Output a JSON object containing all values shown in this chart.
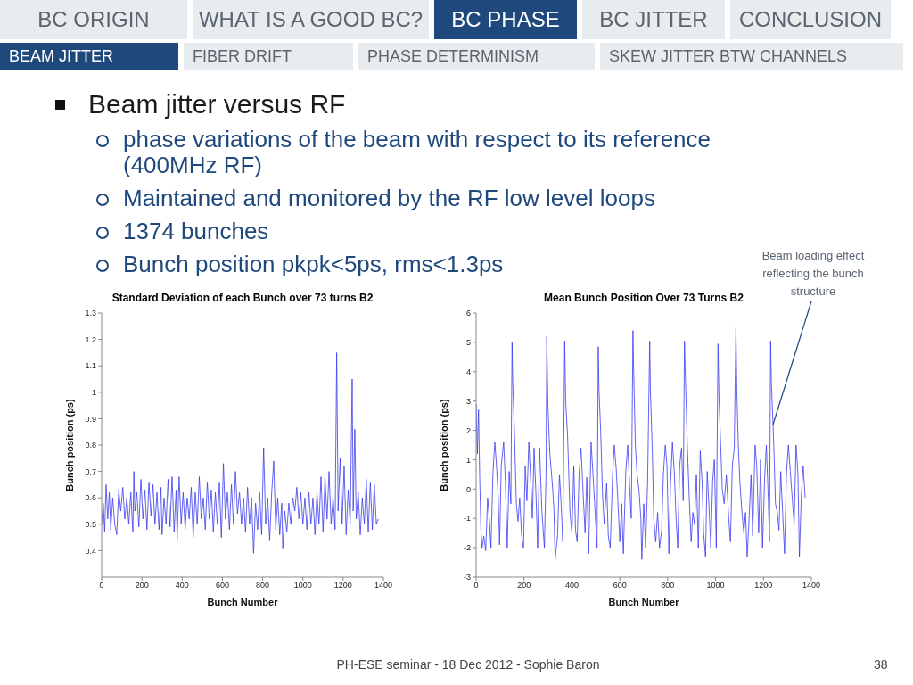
{
  "chart_data": [
    {
      "type": "other",
      "title": "Beam jitter versus RF",
      "annotations": [
        "BC ORIGIN",
        "WHAT IS A GOOD BC?",
        "BC PHASE",
        "BC JITTER",
        "CONCLUSION",
        "BEAM JITTER",
        "FIBER DRIFT",
        "PHASE DETERMINISM",
        "SKEW JITTER BTW CHANNELS",
        "phase variations of the beam with respect to its reference (400MHz RF)",
        "Maintained and monitored by the RF low level loops",
        "1374 bunches",
        "Bunch position pkpk<5ps, rms<1.3ps",
        "PH-ESE seminar - 18 Dec 2012 - Sophie Baron",
        "38"
      ]
    },
    {
      "type": "line",
      "title": "Standard Deviation of each Bunch over 73 turns B2",
      "xlabel": "Bunch Number",
      "ylabel": "Bunch position (ps)",
      "xlim": [
        0,
        1400
      ],
      "xticks": [
        0,
        200,
        400,
        600,
        800,
        1000,
        1200,
        1400
      ],
      "ylim": [
        0.3,
        1.3
      ],
      "yticks": [
        0.4,
        0.5,
        0.6,
        0.7,
        0.8,
        0.9,
        1,
        1.1,
        1.2,
        1.3
      ],
      "grid": false,
      "marker": "none",
      "line_style": "solid",
      "series": [
        {
          "color": "#3b3bf0",
          "x": [
            0,
            8,
            15,
            22,
            30,
            38,
            45,
            55,
            65,
            75,
            85,
            95,
            105,
            115,
            125,
            135,
            145,
            155,
            160,
            165,
            175,
            185,
            195,
            205,
            215,
            225,
            235,
            245,
            255,
            265,
            275,
            285,
            295,
            300,
            310,
            320,
            330,
            340,
            350,
            360,
            370,
            375,
            385,
            395,
            405,
            415,
            425,
            435,
            445,
            455,
            465,
            475,
            485,
            495,
            505,
            515,
            525,
            535,
            545,
            555,
            565,
            575,
            585,
            595,
            605,
            615,
            625,
            635,
            645,
            655,
            665,
            675,
            685,
            695,
            705,
            715,
            725,
            735,
            745,
            755,
            765,
            775,
            785,
            795,
            805,
            815,
            825,
            835,
            845,
            855,
            865,
            875,
            885,
            895,
            900,
            910,
            920,
            930,
            940,
            950,
            960,
            970,
            980,
            990,
            1000,
            1010,
            1020,
            1030,
            1040,
            1050,
            1060,
            1070,
            1080,
            1090,
            1100,
            1110,
            1120,
            1130,
            1140,
            1150,
            1160,
            1168,
            1175,
            1185,
            1195,
            1205,
            1215,
            1225,
            1235,
            1245,
            1250,
            1258,
            1265,
            1275,
            1285,
            1295,
            1305,
            1315,
            1325,
            1335,
            1345,
            1355,
            1365,
            1374
          ],
          "values": [
            0.5,
            0.58,
            0.47,
            0.65,
            0.52,
            0.62,
            0.48,
            0.6,
            0.5,
            0.46,
            0.63,
            0.55,
            0.64,
            0.52,
            0.6,
            0.5,
            0.62,
            0.47,
            0.7,
            0.55,
            0.62,
            0.49,
            0.67,
            0.52,
            0.63,
            0.48,
            0.66,
            0.53,
            0.65,
            0.5,
            0.62,
            0.48,
            0.64,
            0.46,
            0.6,
            0.5,
            0.67,
            0.49,
            0.68,
            0.47,
            0.63,
            0.44,
            0.68,
            0.5,
            0.62,
            0.48,
            0.6,
            0.52,
            0.64,
            0.45,
            0.62,
            0.5,
            0.68,
            0.52,
            0.6,
            0.48,
            0.66,
            0.52,
            0.63,
            0.47,
            0.62,
            0.5,
            0.66,
            0.45,
            0.73,
            0.52,
            0.62,
            0.48,
            0.65,
            0.5,
            0.7,
            0.54,
            0.62,
            0.5,
            0.6,
            0.47,
            0.64,
            0.5,
            0.6,
            0.39,
            0.58,
            0.48,
            0.62,
            0.46,
            0.79,
            0.5,
            0.6,
            0.44,
            0.62,
            0.74,
            0.48,
            0.6,
            0.46,
            0.58,
            0.41,
            0.55,
            0.47,
            0.58,
            0.5,
            0.6,
            0.55,
            0.64,
            0.52,
            0.62,
            0.5,
            0.6,
            0.48,
            0.62,
            0.5,
            0.6,
            0.46,
            0.62,
            0.5,
            0.68,
            0.47,
            0.68,
            0.52,
            0.7,
            0.5,
            0.6,
            0.48,
            1.15,
            0.55,
            0.75,
            0.5,
            0.72,
            0.46,
            0.63,
            0.5,
            1.05,
            0.55,
            0.86,
            0.52,
            0.62,
            0.46,
            0.6,
            0.5,
            0.67,
            0.47,
            0.66,
            0.48,
            0.65,
            0.5,
            0.52
          ]
        }
      ]
    },
    {
      "type": "line",
      "title": "Mean Bunch Position Over 73 Turns B2",
      "xlabel": "Bunch Number",
      "ylabel": "Bunch position (ps)",
      "xlim": [
        0,
        1400
      ],
      "xticks": [
        0,
        200,
        400,
        600,
        800,
        1000,
        1200,
        1400
      ],
      "ylim": [
        -3,
        6
      ],
      "yticks": [
        -3,
        -2,
        -1,
        0,
        1,
        2,
        3,
        4,
        5,
        6
      ],
      "grid": false,
      "marker": "none",
      "line_style": "solid",
      "annotations": [
        {
          "text": "Beam loading effect reflecting the bunch structure",
          "x": 1240,
          "y": 2.2
        }
      ],
      "series": [
        {
          "color": "#3b3bf0",
          "x": [
            0,
            5,
            10,
            15,
            20,
            25,
            32,
            40,
            48,
            55,
            62,
            70,
            78,
            85,
            92,
            98,
            105,
            115,
            122,
            130,
            138,
            145,
            150,
            153,
            160,
            168,
            175,
            182,
            190,
            198,
            205,
            212,
            220,
            228,
            235,
            242,
            250,
            257,
            265,
            275,
            285,
            292,
            295,
            300,
            308,
            318,
            325,
            330,
            340,
            348,
            355,
            362,
            370,
            374,
            382,
            392,
            400,
            408,
            415,
            422,
            430,
            438,
            445,
            455,
            462,
            470,
            480,
            488,
            495,
            505,
            510,
            513,
            520,
            528,
            535,
            545,
            552,
            560,
            570,
            577,
            585,
            592,
            600,
            608,
            615,
            625,
            633,
            640,
            648,
            655,
            658,
            665,
            672,
            680,
            688,
            692,
            700,
            708,
            716,
            725,
            728,
            736,
            742,
            750,
            758,
            766,
            775,
            782,
            790,
            797,
            805,
            812,
            820,
            828,
            835,
            842,
            850,
            858,
            865,
            870,
            874,
            882,
            890,
            898,
            905,
            912,
            920,
            928,
            936,
            944,
            950,
            958,
            965,
            972,
            980,
            988,
            995,
            1003,
            1010,
            1014,
            1020,
            1028,
            1036,
            1045,
            1055,
            1062,
            1070,
            1078,
            1085,
            1089,
            1095,
            1102,
            1110,
            1118,
            1125,
            1132,
            1140,
            1148,
            1155,
            1165,
            1172,
            1180,
            1188,
            1196,
            1205,
            1212,
            1220,
            1225,
            1230,
            1233,
            1240,
            1245,
            1250,
            1258,
            1265,
            1272,
            1280,
            1288,
            1296,
            1304,
            1312,
            1320,
            1328,
            1336,
            1344,
            1350,
            1358,
            1366,
            1374
          ],
          "values": [
            2.9,
            1.2,
            2.7,
            0.4,
            -1.4,
            -2.0,
            -1.6,
            -2.1,
            -0.3,
            -1.0,
            -2.0,
            0.5,
            1.6,
            0.8,
            -0.2,
            -1.9,
            0.8,
            1.6,
            0.3,
            -2.0,
            0.6,
            -0.5,
            5.0,
            3.6,
            2.0,
            -0.5,
            -1.1,
            -0.3,
            -1.6,
            -2.0,
            0.8,
            -0.4,
            1.6,
            0.3,
            -1.0,
            1.4,
            -0.2,
            -2.0,
            1.4,
            -0.8,
            -2.0,
            0.5,
            5.2,
            2.8,
            1.2,
            0.2,
            -0.7,
            -2.4,
            -1.6,
            0.5,
            -0.5,
            -1.8,
            5.05,
            3.0,
            1.8,
            -0.8,
            -1.5,
            0.8,
            -1.4,
            -1.8,
            0.5,
            1.4,
            0.2,
            -1.5,
            0.4,
            -2.2,
            1.6,
            0.5,
            -0.5,
            -2.0,
            4.85,
            3.4,
            2.0,
            -0.2,
            -1.2,
            0.2,
            -1.6,
            -2.0,
            0.5,
            1.5,
            0.7,
            -0.4,
            -1.8,
            -0.5,
            -2.2,
            0.6,
            1.5,
            0.3,
            -1.0,
            5.4,
            4.0,
            1.5,
            0.5,
            0.0,
            -1.0,
            -2.4,
            -0.5,
            -2.0,
            0.2,
            5.05,
            3.3,
            1.2,
            -1.0,
            -1.8,
            -0.8,
            -2.0,
            -1.4,
            0.5,
            1.5,
            0.8,
            -2.2,
            0.2,
            1.6,
            0.5,
            -1.0,
            -2.0,
            0.8,
            1.4,
            -0.4,
            5.05,
            3.8,
            1.5,
            -0.3,
            -1.8,
            -0.8,
            -1.2,
            0.5,
            -2.0,
            1.3,
            0.2,
            -1.5,
            -2.3,
            0.6,
            -0.5,
            -2.0,
            0.3,
            1.0,
            -2.0,
            4.95,
            3.2,
            1.8,
            0.0,
            -0.5,
            0.5,
            -1.0,
            -1.8,
            0.8,
            1.4,
            5.5,
            3.3,
            1.5,
            0.2,
            -0.8,
            -1.5,
            -0.8,
            -2.3,
            -1.0,
            0.5,
            -1.6,
            1.5,
            0.8,
            -1.5,
            1.0,
            -2.0,
            0.4,
            1.5,
            -0.3,
            -1.8,
            5.05,
            3.6,
            2.2,
            1.0,
            -0.5,
            -0.8,
            -1.4,
            0.6,
            -0.8,
            -2.2,
            0.5,
            1.5,
            0.6,
            -0.3,
            -1.2,
            1.5,
            0.5,
            -2.3,
            -0.2,
            0.8,
            -0.3
          ]
        }
      ]
    }
  ]
}
